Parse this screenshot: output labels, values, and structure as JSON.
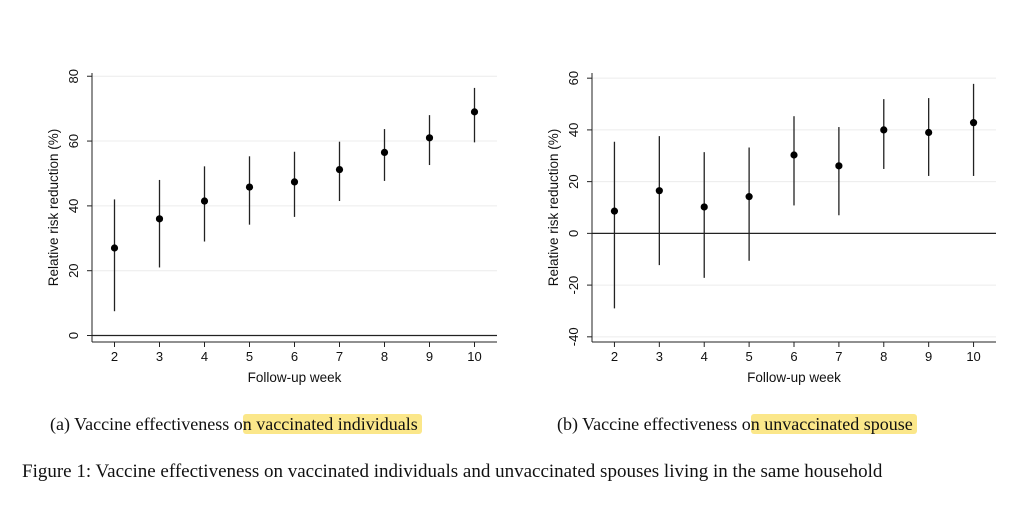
{
  "chart_data": [
    {
      "type": "scatter",
      "subtitle_prefix": "(a) Vaccine effectiveness o",
      "subtitle_highlight": "n vaccinated individuals",
      "xlabel": "Follow-up week",
      "ylabel": "Relative risk reduction  (%)",
      "xlim": [
        1.5,
        10.5
      ],
      "ylim": [
        -2,
        81
      ],
      "yticks": [
        0,
        20,
        40,
        60,
        80
      ],
      "x": [
        2,
        3,
        4,
        5,
        6,
        7,
        8,
        9,
        10
      ],
      "x_tick_labels": [
        "2",
        "3",
        "4",
        "5",
        "6",
        "7",
        "8",
        "9",
        "10"
      ],
      "y_tick_labels": [
        "0",
        "20",
        "40",
        "60",
        "80"
      ],
      "values": [
        27,
        36,
        41.5,
        45.8,
        47.4,
        51.2,
        56.5,
        61,
        69
      ],
      "ci_low": [
        7.5,
        21,
        29,
        34.2,
        36.6,
        41.5,
        47.7,
        52.6,
        59.6
      ],
      "ci_high": [
        42,
        48,
        52.2,
        55.3,
        56.7,
        59.8,
        63.7,
        68,
        76.4
      ]
    },
    {
      "type": "scatter",
      "subtitle_prefix": "(b) Vaccine effectiveness o",
      "subtitle_highlight": "n unvaccinated spouse",
      "xlabel": "Follow-up week",
      "ylabel": "Relative risk reduction  (%)",
      "xlim": [
        1.5,
        10.5
      ],
      "ylim": [
        -42,
        62
      ],
      "yticks": [
        -40,
        -20,
        0,
        20,
        40,
        60
      ],
      "x": [
        2,
        3,
        4,
        5,
        6,
        7,
        8,
        9,
        10
      ],
      "x_tick_labels": [
        "2",
        "3",
        "4",
        "5",
        "6",
        "7",
        "8",
        "9",
        "10"
      ],
      "y_tick_labels": [
        "-40",
        "-20",
        "0",
        "20",
        "40",
        "60"
      ],
      "values": [
        8.6,
        16.5,
        10.2,
        14.2,
        30.3,
        26.1,
        40,
        39,
        42.8
      ],
      "ci_low": [
        -29,
        -12.3,
        -17.2,
        -10.6,
        10.8,
        7,
        24.9,
        22.2,
        22.2
      ],
      "ci_high": [
        35.4,
        37.6,
        31.4,
        33.2,
        45.3,
        41.1,
        51.9,
        52.3,
        57.8
      ]
    }
  ],
  "figure_caption": "Figure 1:  Vaccine effectiveness on vaccinated individuals and unvaccinated spouses living in the same household"
}
